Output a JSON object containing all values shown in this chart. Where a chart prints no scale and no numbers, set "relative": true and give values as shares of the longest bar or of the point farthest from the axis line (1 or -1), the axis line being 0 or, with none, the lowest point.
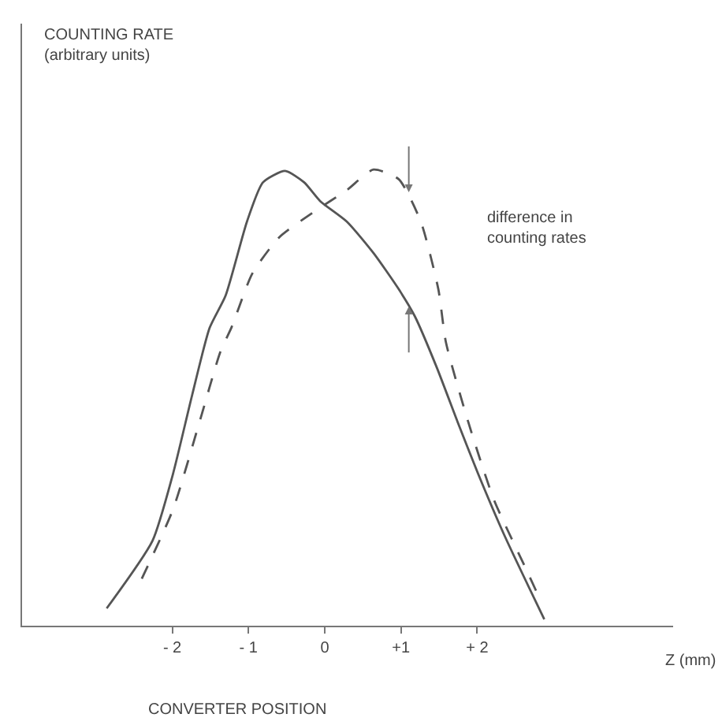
{
  "chart_data": {
    "type": "line",
    "relative": true,
    "xlabel": "Z (mm)",
    "annotations": [
      "COUNTING RATE\n(arbitrary units)",
      "CONVERTER POSITION",
      "difference in\ncounting rates"
    ],
    "xlim": [
      -3.97,
      4.57
    ],
    "xticks": [
      {
        "value": -2,
        "label": "- 2"
      },
      {
        "value": -1,
        "label": "- 1"
      },
      0,
      {
        "value": 1,
        "label": "+1"
      },
      {
        "value": 2,
        "label": "+ 2"
      }
    ],
    "tick_labels": "x",
    "marker": "none",
    "series": [
      {
        "color": "#555555",
        "line_style": "solid",
        "x": [
          -2.86,
          -2.26,
          -1.99,
          -1.74,
          -1.51,
          -1.3,
          -1.02,
          -0.81,
          -0.52,
          -0.27,
          -0.06,
          0.29,
          0.64,
          0.97,
          1.18,
          1.47,
          1.74,
          2.01,
          2.36,
          2.88
        ],
        "values": [
          0.038,
          0.186,
          0.333,
          0.505,
          0.653,
          0.724,
          0.886,
          0.972,
          0.997,
          0.972,
          0.931,
          0.886,
          0.817,
          0.738,
          0.679,
          0.566,
          0.448,
          0.334,
          0.197,
          0.014
        ]
      },
      {
        "color": "#555555",
        "line_style": "dashed",
        "x": [
          -2.4,
          -1.99,
          -1.64,
          -1.37,
          -1.22,
          -0.95,
          -0.6,
          -0.12,
          0.29,
          0.64,
          0.97,
          1.26,
          1.49,
          1.59,
          1.88,
          2.22,
          2.63,
          2.84
        ],
        "values": [
          0.103,
          0.255,
          0.448,
          0.6,
          0.655,
          0.772,
          0.851,
          0.91,
          0.955,
          1.0,
          0.979,
          0.886,
          0.738,
          0.621,
          0.448,
          0.276,
          0.128,
          0.052
        ]
      }
    ]
  }
}
